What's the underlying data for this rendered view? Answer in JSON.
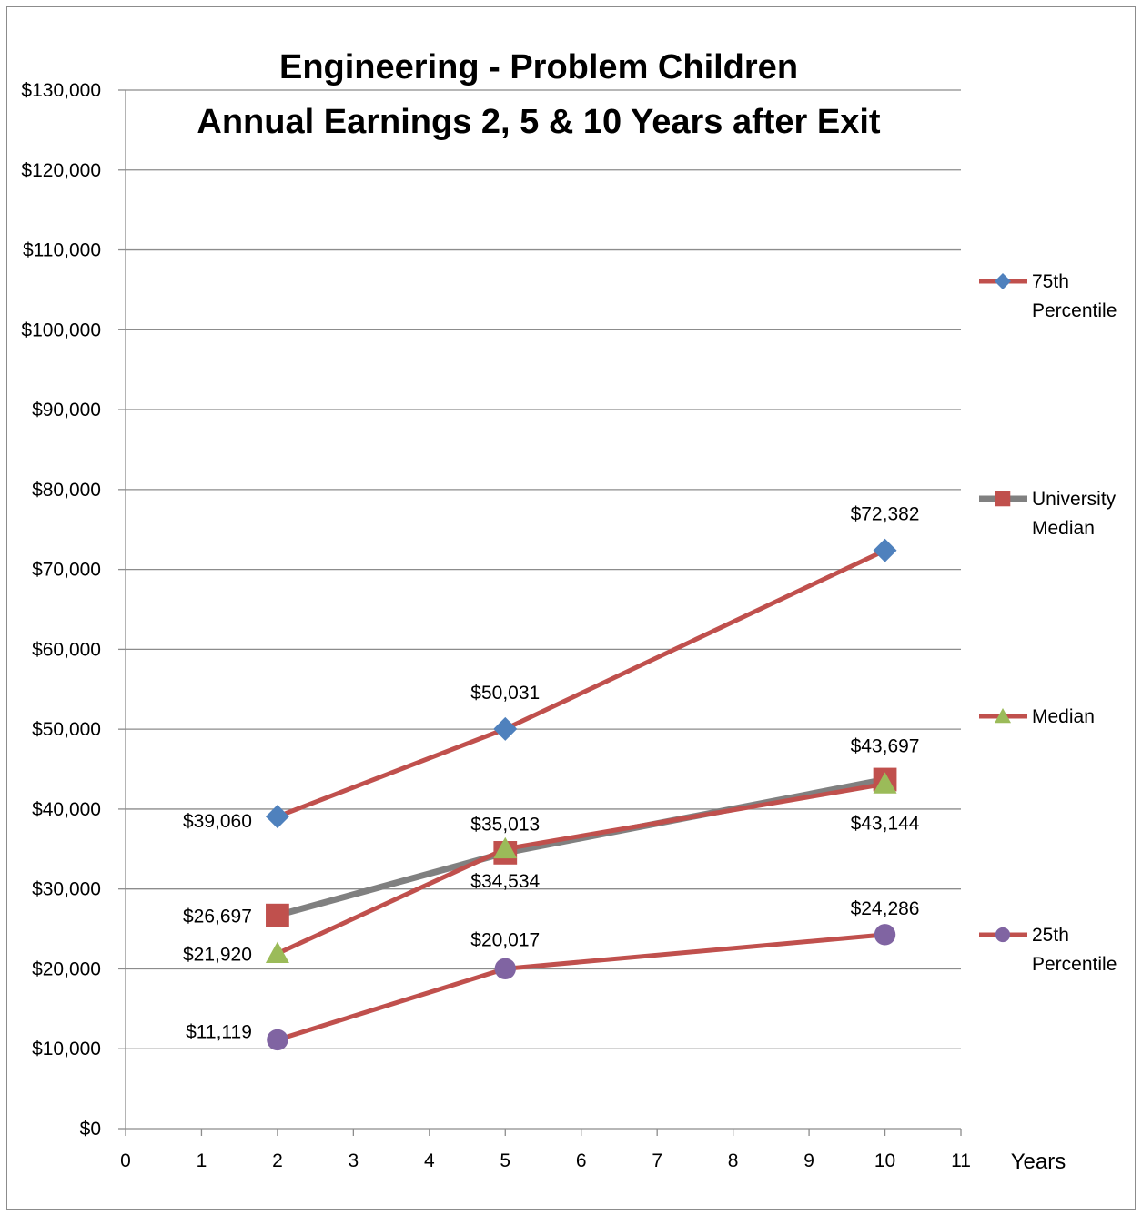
{
  "chart_data": {
    "type": "line",
    "title": [
      "Engineering - Problem Children",
      "Annual Earnings 2, 5 & 10 Years after Exit"
    ],
    "xlabel": "Years",
    "ylabel": "",
    "xlim": [
      0,
      11
    ],
    "ylim": [
      0,
      130000
    ],
    "x_ticks": [
      "0",
      "1",
      "2",
      "3",
      "4",
      "5",
      "6",
      "7",
      "8",
      "9",
      "10",
      "11"
    ],
    "y_ticks": [
      "$0",
      "$10,000",
      "$20,000",
      "$30,000",
      "$40,000",
      "$50,000",
      "$60,000",
      "$70,000",
      "$80,000",
      "$90,000",
      "$100,000",
      "$110,000",
      "$120,000",
      "$130,000"
    ],
    "grid": true,
    "legend_position": "right",
    "series": [
      {
        "name": "75th Percentile",
        "legend_lines": [
          "75th",
          "Percentile"
        ],
        "x": [
          2,
          5,
          10
        ],
        "y": [
          39060,
          50031,
          72382
        ],
        "labels": [
          "$39,060",
          "$50,031",
          "$72,382"
        ],
        "line_color": "#c0504d",
        "marker": "diamond",
        "marker_color": "#4f81bd"
      },
      {
        "name": "University Median",
        "legend_lines": [
          "University",
          "Median"
        ],
        "x": [
          2,
          5,
          10
        ],
        "y": [
          26697,
          34534,
          43697
        ],
        "labels": [
          "$26,697",
          "$34,534",
          "$43,697"
        ],
        "line_color": "#808080",
        "marker": "square",
        "marker_color": "#c0504d"
      },
      {
        "name": "Median",
        "legend_lines": [
          "Median"
        ],
        "x": [
          2,
          5,
          10
        ],
        "y": [
          21920,
          35013,
          43144
        ],
        "labels": [
          "$21,920",
          "$35,013",
          "$43,144"
        ],
        "line_color": "#c0504d",
        "marker": "triangle",
        "marker_color": "#9bbb59"
      },
      {
        "name": "25th Percentile",
        "legend_lines": [
          "25th",
          "Percentile"
        ],
        "x": [
          2,
          5,
          10
        ],
        "y": [
          11119,
          20017,
          24286
        ],
        "labels": [
          "$11,119",
          "$20,017",
          "$24,286"
        ],
        "line_color": "#c0504d",
        "marker": "circle",
        "marker_color": "#8064a2"
      }
    ]
  }
}
